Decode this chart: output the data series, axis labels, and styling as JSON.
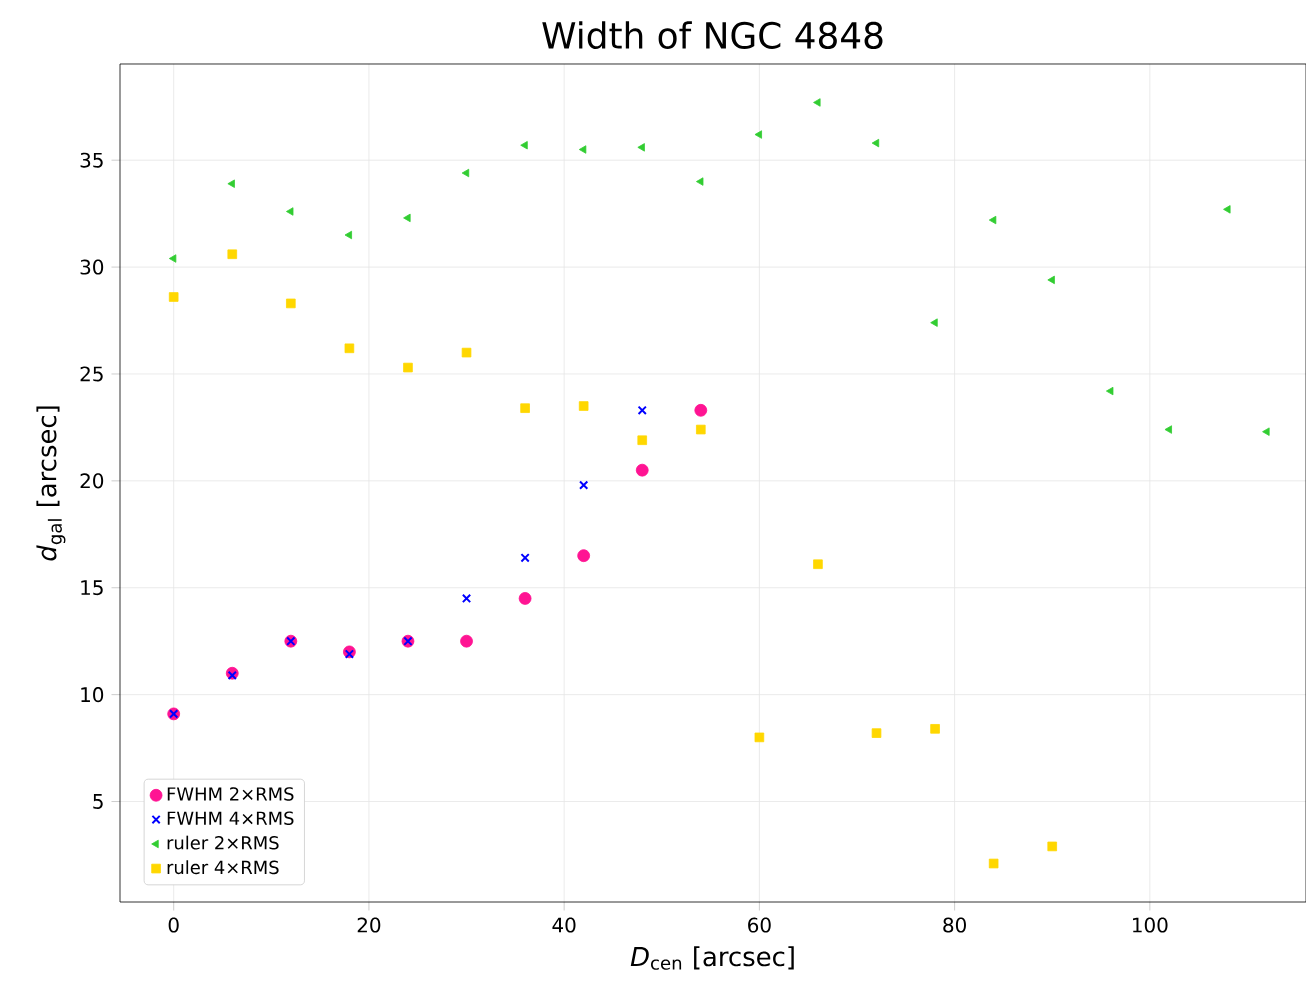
{
  "chart_data": {
    "type": "scatter",
    "title": "Width of NGC 4848",
    "xlabel": "*D*$_{cen}$ [arcsec]",
    "ylabel": "*d*$_{gal}$ [arcsec]",
    "xlim": [
      -5.5,
      116
    ],
    "ylim": [
      0.3,
      39.5
    ],
    "xticks": [
      0,
      20,
      40,
      60,
      80,
      100
    ],
    "yticks": [
      5,
      10,
      15,
      20,
      25,
      30,
      35
    ],
    "grid": true,
    "legend": "bottom left",
    "series": [
      {
        "name": "FWHM 2×RMS",
        "color": "#ff1493",
        "marker": "circle",
        "x": [
          0,
          6,
          12,
          18,
          24,
          30,
          36,
          42,
          48,
          54
        ],
        "values": [
          9.1,
          11.0,
          12.5,
          12.0,
          12.5,
          12.5,
          14.5,
          16.5,
          20.5,
          23.3
        ]
      },
      {
        "name": "FWHM 4×RMS",
        "color": "#0000ff",
        "marker": "cross",
        "x": [
          0,
          6,
          12,
          18,
          24,
          30,
          36,
          42,
          48
        ],
        "values": [
          9.1,
          10.9,
          12.5,
          11.9,
          12.5,
          14.5,
          16.4,
          19.8,
          23.3
        ]
      },
      {
        "name": "ruler 2×RMS",
        "color": "#32cd32",
        "marker": "triangle",
        "x": [
          0,
          6,
          12,
          18,
          24,
          30,
          36,
          42,
          48,
          54,
          60,
          66,
          72,
          78,
          84,
          90,
          96,
          102,
          108,
          112
        ],
        "values": [
          30.4,
          33.9,
          32.6,
          31.5,
          32.3,
          34.4,
          35.7,
          35.5,
          35.6,
          34.0,
          36.2,
          37.7,
          35.8,
          27.4,
          32.2,
          29.4,
          24.2,
          22.4,
          32.7,
          22.3
        ]
      },
      {
        "name": "ruler 4×RMS",
        "color": "#ffd700",
        "marker": "square",
        "x": [
          0,
          6,
          12,
          18,
          24,
          30,
          36,
          42,
          48,
          54,
          60,
          66,
          72,
          78,
          84,
          90
        ],
        "values": [
          28.6,
          30.6,
          28.3,
          26.2,
          25.3,
          26.0,
          23.4,
          23.5,
          21.9,
          22.4,
          8.0,
          16.1,
          8.2,
          8.4,
          2.1,
          2.9
        ]
      }
    ]
  }
}
